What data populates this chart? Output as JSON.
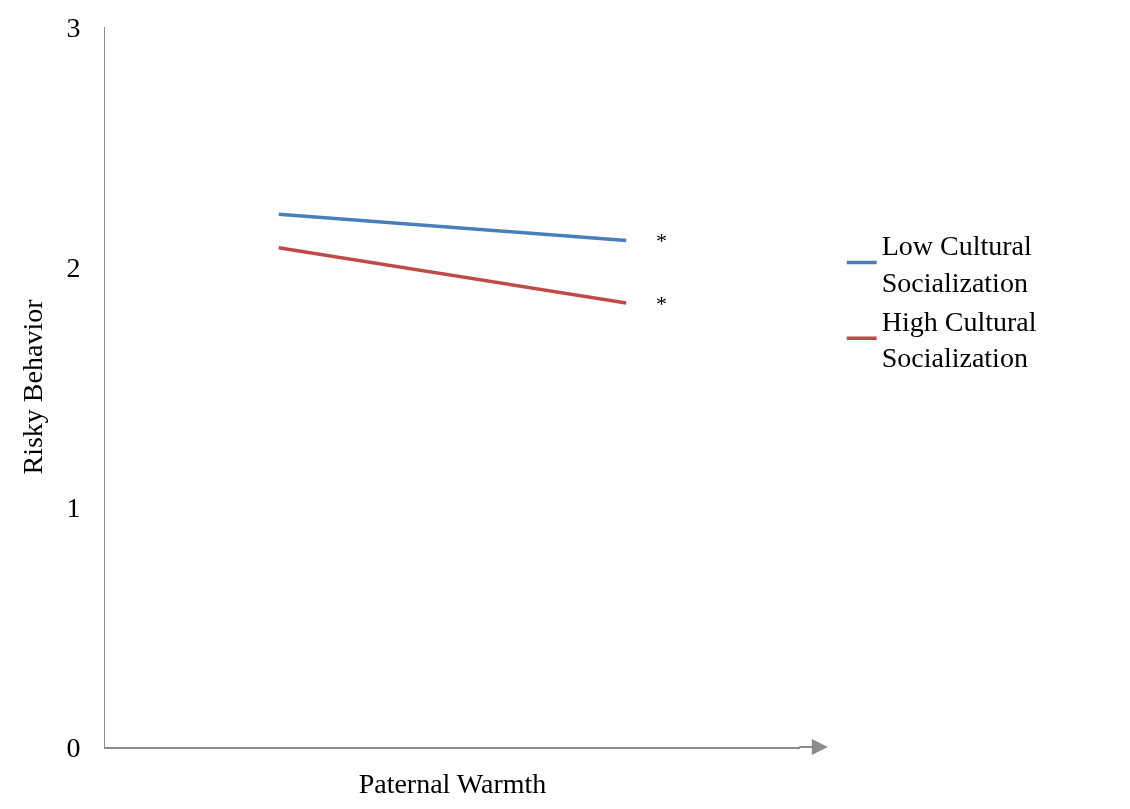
{
  "chart_data": {
    "type": "line",
    "xlabel": "Paternal Warmth",
    "ylabel": "Risky Behavior",
    "categories": [
      null,
      null
    ],
    "series": [
      {
        "name": "Low Cultural Socialization",
        "color": "#4a7ebb",
        "values": [
          2.22,
          2.11
        ]
      },
      {
        "name": "High Cultural Socialization",
        "color": "#be4b48",
        "values": [
          2.08,
          1.85
        ]
      }
    ],
    "annotations": [
      "*",
      "*"
    ],
    "ylim": [
      0,
      3
    ],
    "yticks": [
      0,
      1,
      2,
      3
    ],
    "grid": false,
    "legend": "right",
    "marker": "none",
    "line_style": "solid"
  }
}
